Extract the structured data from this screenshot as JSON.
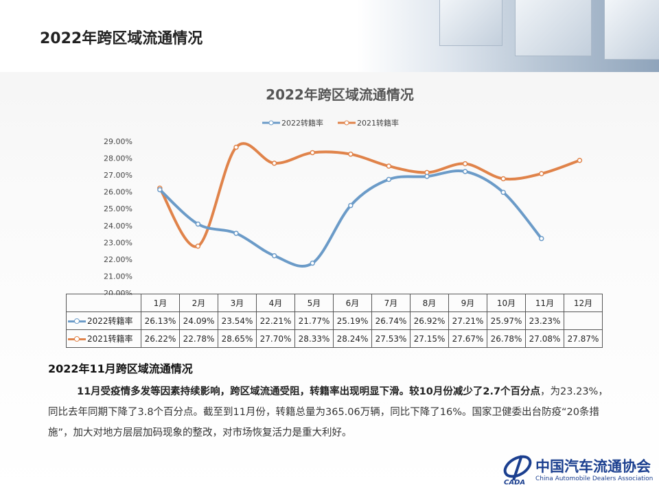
{
  "header": {
    "title": "2022年跨区域流通情况"
  },
  "colors": {
    "series2022": "#6b9bc8",
    "series2021": "#e0834a"
  },
  "chart_data": {
    "type": "line",
    "title": "2022年跨区域流通情况",
    "categories": [
      "1月",
      "2月",
      "3月",
      "4月",
      "5月",
      "6月",
      "7月",
      "8月",
      "9月",
      "10月",
      "11月",
      "12月"
    ],
    "series": [
      {
        "name": "2022转籍率",
        "values": [
          26.13,
          24.09,
          23.54,
          22.21,
          21.77,
          25.19,
          26.74,
          26.92,
          27.21,
          25.97,
          23.23,
          null
        ],
        "labels": [
          "26.13%",
          "24.09%",
          "23.54%",
          "22.21%",
          "21.77%",
          "25.19%",
          "26.74%",
          "26.92%",
          "27.21%",
          "25.97%",
          "23.23%",
          ""
        ]
      },
      {
        "name": "2021转籍率",
        "values": [
          26.22,
          22.78,
          28.65,
          27.7,
          28.33,
          28.24,
          27.53,
          27.15,
          27.67,
          26.78,
          27.08,
          27.87
        ],
        "labels": [
          "26.22%",
          "22.78%",
          "28.65%",
          "27.70%",
          "28.33%",
          "28.24%",
          "27.53%",
          "27.15%",
          "27.67%",
          "26.78%",
          "27.08%",
          "27.87%"
        ]
      }
    ],
    "ylim": [
      20,
      29
    ],
    "yticks": [
      "20.00%",
      "21.00%",
      "22.00%",
      "23.00%",
      "24.00%",
      "25.00%",
      "26.00%",
      "27.00%",
      "28.00%",
      "29.00%"
    ],
    "legend": "top",
    "grid": false,
    "data_table": true,
    "smooth": true
  },
  "section": {
    "subtitle": "2022年11月跨区域流通情况",
    "bold_sentence": "11月受疫情多发等因素持续影响，跨区域流通受阻，转籍率出现明显下滑。较10月份减少了2.7个百分点",
    "rest": "，为23.23%，同比去年同期下降了3.8个百分点。截至到11月份，转籍总量为365.06万辆，同比下降了16%。国家卫健委出台防疫“20条措施”，加大对地方层层加码现象的整改，对市场恢复活力是重大利好。"
  },
  "logo": {
    "cn": "中国汽车流通协会",
    "en": "China Automobile Dealers Association",
    "abbr": "CADA"
  }
}
